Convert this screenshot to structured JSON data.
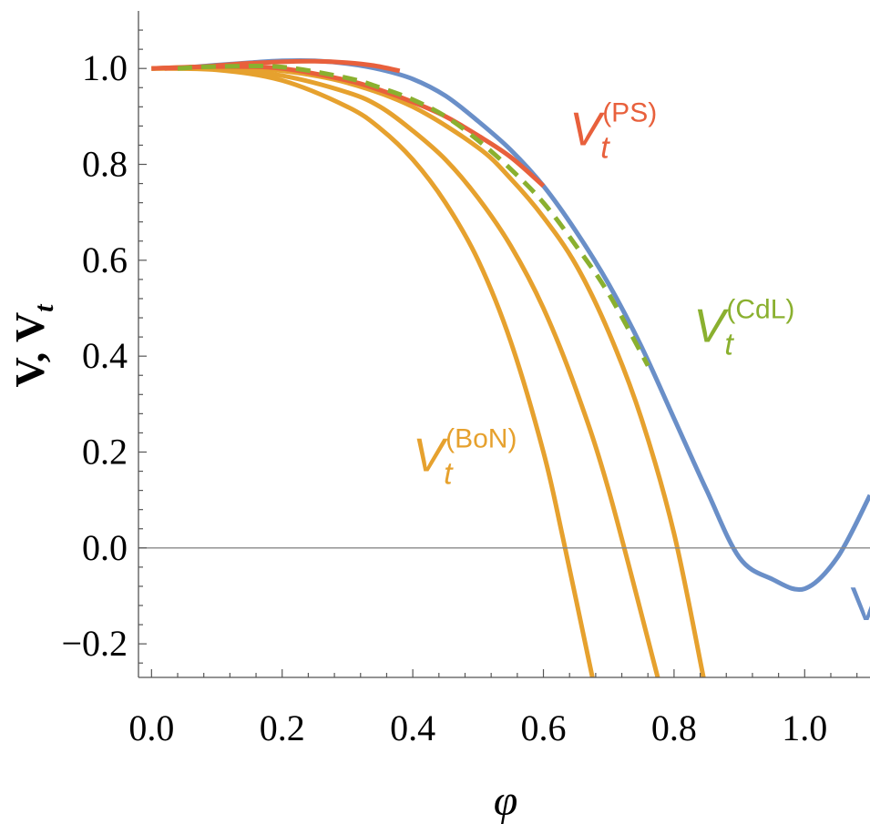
{
  "chart_data": {
    "type": "line",
    "title": "",
    "xlabel": "φ",
    "ylabel": "V, V",
    "ylabel_sub": "t",
    "xlim": [
      -0.02,
      1.1
    ],
    "ylim": [
      -0.27,
      1.12
    ],
    "xticks": [
      0.0,
      0.2,
      0.4,
      0.6,
      0.8,
      1.0
    ],
    "xtick_labels": [
      "0.0",
      "0.2",
      "0.4",
      "0.6",
      "0.8",
      "1.0"
    ],
    "yticks": [
      -0.2,
      0.0,
      0.2,
      0.4,
      0.6,
      0.8,
      1.0
    ],
    "ytick_labels": [
      "−0.2",
      "0.0",
      "0.2",
      "0.4",
      "0.6",
      "0.8",
      "1.0"
    ],
    "grid": false,
    "legend": "none",
    "zero_line": true,
    "annotations": [
      {
        "main": "V",
        "sub": "t",
        "sup": "(PS)",
        "color": "#E8603C",
        "at": [
          0.64,
          0.84
        ]
      },
      {
        "main": "V",
        "sub": "t",
        "sup": "(CdL)",
        "color": "#8AB02F",
        "at": [
          0.83,
          0.43
        ]
      },
      {
        "main": "V",
        "sub": "t",
        "sup": "(BoN)",
        "color": "#E6A12E",
        "at": [
          0.4,
          0.16
        ]
      },
      {
        "main": "V",
        "sub": "",
        "sup": "",
        "color": "#6A8FC8",
        "at": [
          1.07,
          -0.15
        ]
      }
    ],
    "series": [
      {
        "color": "#6A8FC8",
        "style": "solid",
        "x": [
          0.0,
          0.05,
          0.1,
          0.15,
          0.2,
          0.25,
          0.3,
          0.35,
          0.4,
          0.45,
          0.5,
          0.55,
          0.6,
          0.65,
          0.7,
          0.75,
          0.8,
          0.85,
          0.9,
          0.95,
          1.0,
          1.05,
          1.1
        ],
        "y": [
          1.0,
          1.002,
          1.007,
          1.012,
          1.016,
          1.016,
          1.01,
          0.998,
          0.978,
          0.943,
          0.89,
          0.83,
          0.755,
          0.66,
          0.55,
          0.42,
          0.27,
          0.12,
          -0.02,
          -0.065,
          -0.085,
          -0.02,
          0.11
        ]
      },
      {
        "color": "#E8603C",
        "style": "solid",
        "x": [
          0.02,
          0.08,
          0.14,
          0.2,
          0.25,
          0.3,
          0.34,
          0.38
        ],
        "y": [
          1.0,
          1.004,
          1.01,
          1.014,
          1.015,
          1.012,
          1.006,
          0.995
        ]
      },
      {
        "color": "#E8603C",
        "style": "solid",
        "x": [
          0.0,
          0.1,
          0.2,
          0.3,
          0.35,
          0.4,
          0.45,
          0.5,
          0.55,
          0.6
        ],
        "y": [
          1.0,
          1.004,
          1.0,
          0.975,
          0.955,
          0.93,
          0.9,
          0.86,
          0.815,
          0.755
        ]
      },
      {
        "color": "#E6A12E",
        "style": "solid",
        "x": [
          0.0,
          0.1,
          0.2,
          0.3,
          0.4,
          0.5,
          0.55,
          0.6,
          0.65,
          0.7,
          0.75,
          0.8,
          0.845
        ],
        "y": [
          1.0,
          1.003,
          0.995,
          0.97,
          0.92,
          0.835,
          0.77,
          0.69,
          0.59,
          0.45,
          0.27,
          0.03,
          -0.27
        ]
      },
      {
        "color": "#E6A12E",
        "style": "solid",
        "x": [
          0.0,
          0.1,
          0.2,
          0.3,
          0.35,
          0.4,
          0.45,
          0.5,
          0.55,
          0.6,
          0.65,
          0.7,
          0.775
        ],
        "y": [
          1.0,
          1.0,
          0.985,
          0.95,
          0.92,
          0.87,
          0.81,
          0.73,
          0.63,
          0.5,
          0.33,
          0.12,
          -0.27
        ]
      },
      {
        "color": "#E6A12E",
        "style": "solid",
        "x": [
          0.0,
          0.1,
          0.2,
          0.3,
          0.35,
          0.4,
          0.45,
          0.5,
          0.55,
          0.6,
          0.63,
          0.675
        ],
        "y": [
          1.0,
          0.997,
          0.975,
          0.92,
          0.875,
          0.81,
          0.72,
          0.6,
          0.43,
          0.2,
          0.02,
          -0.27
        ]
      },
      {
        "color": "#8AB02F",
        "style": "dashed",
        "x": [
          0.04,
          0.1,
          0.2,
          0.3,
          0.35,
          0.4,
          0.45,
          0.5,
          0.55,
          0.6,
          0.65,
          0.7,
          0.76
        ],
        "y": [
          1.0,
          1.004,
          1.003,
          0.98,
          0.96,
          0.935,
          0.9,
          0.85,
          0.79,
          0.72,
          0.63,
          0.53,
          0.38
        ]
      }
    ]
  }
}
